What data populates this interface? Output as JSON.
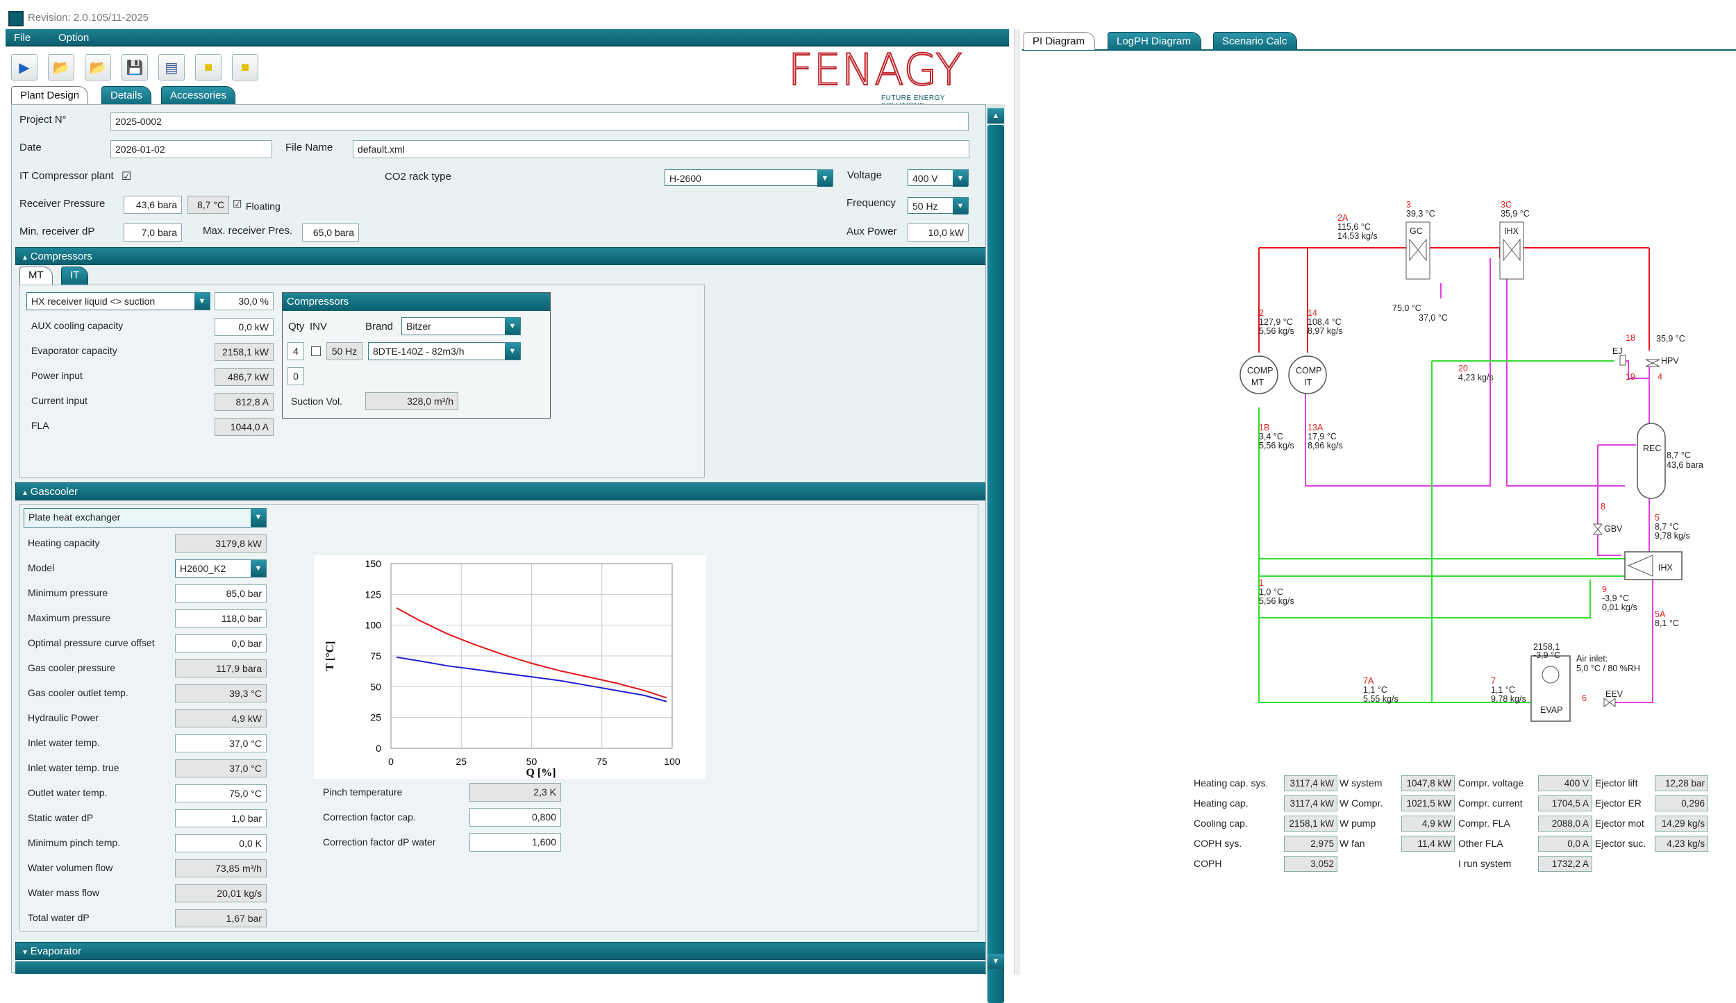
{
  "window": {
    "title": "Revision: 2.0.105/11-2025"
  },
  "menu": {
    "file": "File",
    "option": "Option"
  },
  "logo": {
    "name": "FENAGY",
    "tagline": "FUTURE ENERGY SOLUTIONS"
  },
  "left_tabs": [
    "Plant Design",
    "Details",
    "Accessories"
  ],
  "project": {
    "project_no_label": "Project N°",
    "project_no": "2025-0002",
    "date_label": "Date",
    "date": "2026-01-02",
    "filename_label": "File Name",
    "filename": "default.xml",
    "it_comp_label": "IT Compressor plant",
    "it_comp_checked": "☑",
    "rack_label": "CO2 rack type",
    "rack": "H-2600",
    "voltage_label": "Voltage",
    "voltage": "400 V",
    "recv_label": "Receiver Pressure",
    "recv_p": "43,6 bara",
    "recv_t": "8,7 °C",
    "floating_label": "Floating",
    "floating_checked": "☑",
    "freq_label": "Frequency",
    "freq": "50 Hz",
    "min_dp_label": "Min. receiver dP",
    "min_dp": "7,0 bara",
    "max_p_label": "Max. receiver Pres.",
    "max_p": "65,0 bara",
    "aux_label": "Aux Power",
    "aux": "10,0 kW"
  },
  "compressors": {
    "section": "Compressors",
    "tabs": [
      "MT",
      "IT"
    ],
    "hx_mode": "HX receiver liquid <> suction",
    "hx_pct": "30,0 %",
    "rows": [
      {
        "label": "AUX cooling capacity",
        "value": "0,0 kW"
      },
      {
        "label": "Evaporator capacity",
        "value": "2158,1 kW"
      },
      {
        "label": "Power input",
        "value": "486,7 kW"
      },
      {
        "label": "Current input",
        "value": "812,8 A"
      },
      {
        "label": "FLA",
        "value": "1044,0 A"
      }
    ],
    "sub": {
      "title": "Compressors",
      "qty_label": "Qty",
      "inv_label": "INV",
      "brand_label": "Brand",
      "brand": "Bitzer",
      "qty": "4",
      "hz": "50 Hz",
      "model": "8DTE-140Z - 82m3/h",
      "qty2": "0",
      "suction_label": "Suction Vol.",
      "suction": "328,0 m³/h"
    }
  },
  "gascooler": {
    "section": "Gascooler",
    "type": "Plate heat exchanger",
    "rows": [
      {
        "label": "Heating capacity",
        "value": "3179,8 kW",
        "ro": true
      },
      {
        "label": "Model",
        "value": "H2600_K2",
        "dd": true
      },
      {
        "label": "Minimum pressure",
        "value": "85,0 bar"
      },
      {
        "label": "Maximum pressure",
        "value": "118,0 bar"
      },
      {
        "label": "Optimal pressure curve offset",
        "value": "0,0 bar"
      },
      {
        "label": "Gas cooler pressure",
        "value": "117,9 bara",
        "ro": true
      },
      {
        "label": "Gas cooler outlet temp.",
        "value": "39,3 °C",
        "ro": true
      },
      {
        "label": "Hydraulic Power",
        "value": "4,9 kW",
        "ro": true
      },
      {
        "label": "Inlet water temp.",
        "value": "37,0 °C"
      },
      {
        "label": "Inlet water temp. true",
        "value": "37,0 °C",
        "ro": true
      },
      {
        "label": "Outlet water temp.",
        "value": "75,0 °C"
      },
      {
        "label": "Static water dP",
        "value": "1,0 bar"
      },
      {
        "label": "Minimum pinch temp.",
        "value": "0,0 K"
      },
      {
        "label": "Water volumen flow",
        "value": "73,85 m³/h",
        "ro": true
      },
      {
        "label": "Water mass flow",
        "value": "20,01 kg/s",
        "ro": true
      },
      {
        "label": "Total water dP",
        "value": "1,67 bar",
        "ro": true
      }
    ],
    "pinch_label": "Pinch temperature",
    "pinch": "2,3 K",
    "corr_cap_label": "Correction factor cap.",
    "corr_cap": "0,800",
    "corr_dp_label": "Correction factor dP water",
    "corr_dp": "1,600"
  },
  "evaporator": {
    "section": "Evaporator"
  },
  "chart_data": {
    "type": "line",
    "xlabel": "Q [%]",
    "ylabel": "T [°C]",
    "xlim": [
      0,
      100
    ],
    "ylim": [
      0,
      150
    ],
    "xticks": [
      0,
      25,
      50,
      75,
      100
    ],
    "yticks": [
      0,
      25,
      50,
      75,
      100,
      125,
      150
    ],
    "grid": true,
    "series": [
      {
        "color": "#e8141a",
        "x": [
          2,
          10,
          20,
          30,
          40,
          50,
          60,
          70,
          80,
          90,
          98
        ],
        "y": [
          114,
          104,
          93,
          84,
          76,
          69,
          63,
          58,
          53,
          47,
          41
        ]
      },
      {
        "color": "#2020d0",
        "x": [
          2,
          10,
          20,
          30,
          40,
          50,
          60,
          70,
          80,
          90,
          98
        ],
        "y": [
          74,
          71,
          67,
          64,
          61,
          58,
          55,
          51,
          47,
          43,
          38
        ]
      }
    ]
  },
  "right_tabs": [
    "PI Diagram",
    "LogPH Diagram",
    "Scenario Calc"
  ],
  "pi": {
    "labels": [
      {
        "id": "2A",
        "t": "2A",
        "l2": "115,6 °C",
        "l3": "14,53 kg/s"
      },
      {
        "id": "3",
        "t": "3",
        "l2": "39,3 °C"
      },
      {
        "id": "3C",
        "t": "3C",
        "l2": "35,9 °C"
      },
      {
        "id": "2",
        "t": "2",
        "l2": "127,9 °C",
        "l3": "5,56 kg/s"
      },
      {
        "id": "14",
        "t": "14",
        "l2": "108,4 °C",
        "l3": "8,97 kg/s"
      },
      {
        "id": "18",
        "t": "18"
      },
      {
        "id": "19",
        "t": "19"
      },
      {
        "id": "4",
        "t": "4"
      },
      {
        "id": "20",
        "t": "20",
        "l2": "4,23 kg/s"
      },
      {
        "id": "1B",
        "t": "1B",
        "l2": "3,4 °C",
        "l3": "5,56 kg/s"
      },
      {
        "id": "13A",
        "t": "13A",
        "l2": "17,9 °C",
        "l3": "8,96 kg/s"
      },
      {
        "id": "8",
        "t": "8"
      },
      {
        "id": "5",
        "t": "5",
        "l2": "8,7 °C",
        "l3": "9,78 kg/s"
      },
      {
        "id": "1",
        "t": "1",
        "l2": "1,0 °C",
        "l3": "5,56 kg/s"
      },
      {
        "id": "9",
        "t": "9",
        "l2": "-3,9 °C",
        "l3": "0,01 kg/s"
      },
      {
        "id": "5A",
        "t": "5A",
        "l2": "8,1 °C"
      },
      {
        "id": "7A",
        "t": "7A",
        "l2": "1,1 °C",
        "l3": "5,55 kg/s"
      },
      {
        "id": "7",
        "t": "7",
        "l2": "1,1 °C",
        "l3": "9,78 kg/s"
      },
      {
        "id": "6",
        "t": "6"
      }
    ],
    "gc_temps": {
      "t1": "75,0 °C",
      "t2": "37,0 °C"
    },
    "hpv_temp": "35,9 °C",
    "rec": {
      "name": "REC",
      "t": "8,7 °C",
      "p": "43,6 bara"
    },
    "evap": {
      "cap": "2158,1",
      "temp": "-3,9 °C",
      "name": "EVAP",
      "air_label": "Air inlet:",
      "air": "5,0 °C / 80 %RH"
    },
    "names": {
      "gc": "GC",
      "ihx_top": "IHX",
      "ihx": "IHX",
      "comp_mt": "COMP",
      "mt": "MT",
      "comp_it": "COMP",
      "it": "IT",
      "ej": "EJ",
      "hpv": "HPV",
      "gbv": "GBV",
      "eev": "EEV"
    }
  },
  "results": [
    [
      {
        "l": "Heating cap. sys.",
        "v": "3117,4 kW"
      },
      {
        "l": "W system",
        "v": "1047,8 kW"
      },
      {
        "l": "Compr. voltage",
        "v": "400 V"
      },
      {
        "l": "Ejector lift",
        "v": "12,28 bar"
      }
    ],
    [
      {
        "l": "Heating cap.",
        "v": "3117,4 kW"
      },
      {
        "l": "W Compr.",
        "v": "1021,5 kW"
      },
      {
        "l": "Compr. current",
        "v": "1704,5 A"
      },
      {
        "l": "Ejector ER",
        "v": "0,296"
      }
    ],
    [
      {
        "l": "Cooling cap.",
        "v": "2158,1 kW"
      },
      {
        "l": "W pump",
        "v": "4,9 kW"
      },
      {
        "l": "Compr. FLA",
        "v": "2088,0 A"
      },
      {
        "l": "Ejector mot",
        "v": "14,29 kg/s"
      }
    ],
    [
      {
        "l": "COPH sys.",
        "v": "2,975"
      },
      {
        "l": "W fan",
        "v": "11,4 kW"
      },
      {
        "l": "Other FLA",
        "v": "0,0 A"
      },
      {
        "l": "Ejector suc.",
        "v": "4,23 kg/s"
      }
    ],
    [
      {
        "l": "COPH",
        "v": "3,052"
      },
      null,
      {
        "l": "I run system",
        "v": "1732,2 A"
      },
      null
    ]
  ],
  "colors": {
    "accent": "#0d6070",
    "hot": "#e8141a",
    "cold": "#33dd33",
    "magenta": "#e040e0"
  }
}
